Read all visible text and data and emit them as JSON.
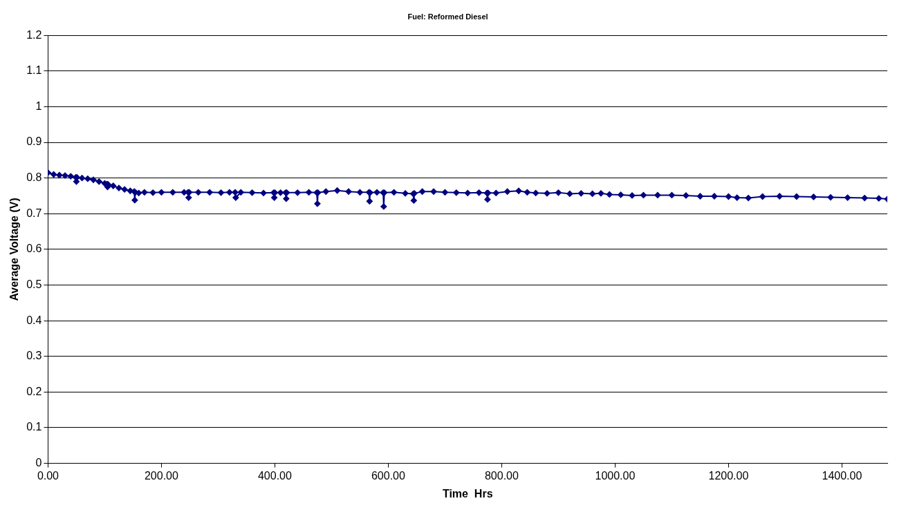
{
  "chart_data": {
    "type": "line",
    "title": "Fuel: Reformed Diesel",
    "xlabel": "Time  Hrs",
    "ylabel": "Average Voltage (V)",
    "marker": "diamond",
    "grid": "y",
    "legend": false,
    "xlim": [
      0,
      1480
    ],
    "xticks": [
      {
        "value": 0,
        "label": "0.00"
      },
      {
        "value": 200,
        "label": "200.00"
      },
      {
        "value": 400,
        "label": "400.00"
      },
      {
        "value": 600,
        "label": "600.00"
      },
      {
        "value": 800,
        "label": "800.00"
      },
      {
        "value": 1000,
        "label": "1000.00"
      },
      {
        "value": 1200,
        "label": "1200.00"
      },
      {
        "value": 1400,
        "label": "1400.00"
      }
    ],
    "ylim": [
      0,
      1.2
    ],
    "yticks": [
      0,
      0.1,
      0.2,
      0.3,
      0.4,
      0.5,
      0.6,
      0.7,
      0.8,
      0.9,
      1,
      1.1,
      1.2
    ],
    "series": [
      {
        "color": "#000080",
        "x": [
          0,
          10,
          20,
          30,
          40,
          49,
          50,
          51,
          60,
          70,
          80,
          90,
          100,
          104,
          105,
          106,
          115,
          125,
          135,
          145,
          152,
          153,
          154,
          160,
          170,
          185,
          200,
          220,
          240,
          247,
          248,
          249,
          265,
          285,
          305,
          320,
          330,
          331,
          340,
          360,
          380,
          398,
          399,
          400,
          410,
          419,
          420,
          421,
          440,
          460,
          474,
          475,
          476,
          490,
          510,
          530,
          550,
          566,
          567,
          568,
          580,
          591,
          592,
          593,
          610,
          630,
          644,
          645,
          646,
          660,
          680,
          700,
          720,
          740,
          760,
          774,
          775,
          776,
          790,
          810,
          830,
          845,
          860,
          880,
          900,
          920,
          940,
          960,
          975,
          990,
          1010,
          1030,
          1050,
          1075,
          1100,
          1125,
          1150,
          1175,
          1200,
          1215,
          1235,
          1260,
          1290,
          1320,
          1350,
          1380,
          1410,
          1440,
          1465,
          1480
        ],
        "values": [
          0.815,
          0.81,
          0.808,
          0.807,
          0.805,
          0.802,
          0.79,
          0.802,
          0.8,
          0.798,
          0.795,
          0.79,
          0.785,
          0.783,
          0.775,
          0.782,
          0.778,
          0.772,
          0.768,
          0.764,
          0.762,
          0.738,
          0.76,
          0.758,
          0.76,
          0.759,
          0.76,
          0.76,
          0.76,
          0.76,
          0.745,
          0.76,
          0.76,
          0.76,
          0.759,
          0.76,
          0.76,
          0.745,
          0.76,
          0.759,
          0.758,
          0.759,
          0.745,
          0.759,
          0.759,
          0.759,
          0.742,
          0.759,
          0.759,
          0.76,
          0.759,
          0.728,
          0.759,
          0.762,
          0.765,
          0.762,
          0.76,
          0.76,
          0.735,
          0.759,
          0.76,
          0.759,
          0.72,
          0.759,
          0.76,
          0.757,
          0.756,
          0.737,
          0.757,
          0.762,
          0.762,
          0.76,
          0.759,
          0.758,
          0.759,
          0.758,
          0.74,
          0.758,
          0.758,
          0.762,
          0.764,
          0.76,
          0.758,
          0.757,
          0.759,
          0.756,
          0.757,
          0.756,
          0.757,
          0.754,
          0.753,
          0.751,
          0.752,
          0.752,
          0.752,
          0.751,
          0.749,
          0.749,
          0.748,
          0.745,
          0.744,
          0.748,
          0.749,
          0.748,
          0.747,
          0.746,
          0.745,
          0.744,
          0.743,
          0.741
        ]
      }
    ]
  }
}
